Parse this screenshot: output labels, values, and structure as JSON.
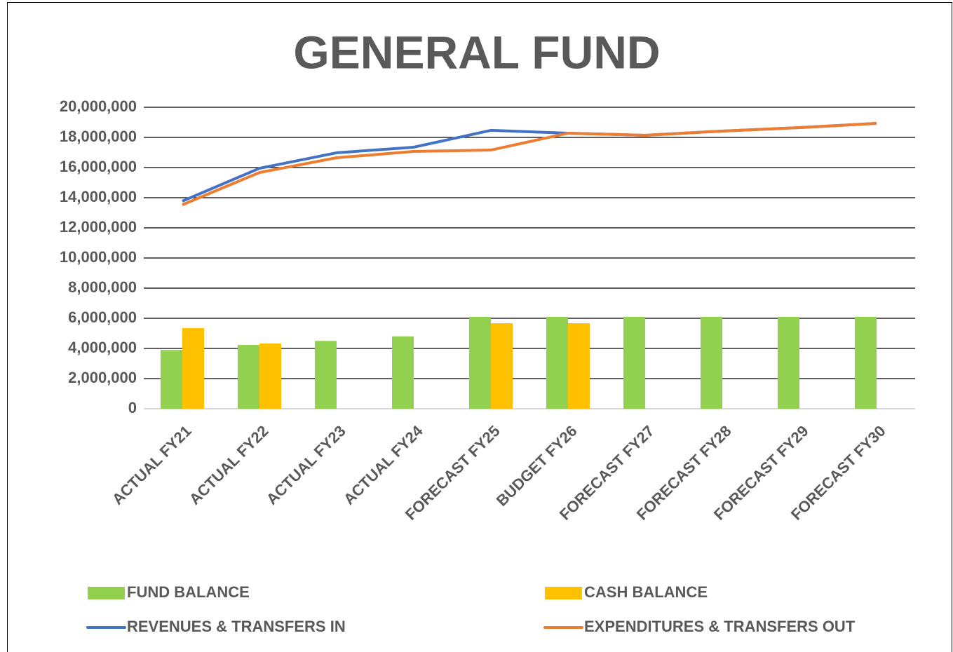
{
  "chart_data": {
    "type": "bar-line",
    "title": "GENERAL FUND",
    "categories": [
      "ACTUAL FY21",
      "ACTUAL FY22",
      "ACTUAL FY23",
      "ACTUAL FY24",
      "FORECAST FY25",
      "BUDGET FY26",
      "FORECAST FY27",
      "FORECAST FY28",
      "FORECAST FY29",
      "FORECAST FY30"
    ],
    "series": [
      {
        "name": "FUND BALANCE",
        "type": "bar",
        "color": "#92d050",
        "values": [
          3900000,
          4230000,
          4500000,
          4800000,
          6100000,
          6100000,
          6100000,
          6100000,
          6100000,
          6100000
        ]
      },
      {
        "name": "CASH BALANCE",
        "type": "bar",
        "color": "#ffc000",
        "values": [
          5350000,
          4330000,
          null,
          null,
          5670000,
          5670000,
          null,
          null,
          null,
          null
        ]
      },
      {
        "name": "REVENUES & TRANSFERS IN",
        "type": "line",
        "color": "#4472c4",
        "values": [
          13770000,
          15950000,
          16980000,
          17350000,
          18470000,
          18280000,
          18140000,
          18420000,
          18650000,
          18930000
        ]
      },
      {
        "name": "EXPENDITURES & TRANSFERS OUT",
        "type": "line",
        "color": "#ed7d31",
        "values": [
          13530000,
          15670000,
          16650000,
          17070000,
          17160000,
          18280000,
          18140000,
          18420000,
          18650000,
          18930000
        ]
      }
    ],
    "ylim": [
      0,
      20000000
    ],
    "yticks": [
      0,
      {
        "value": 2000000,
        "label": "2,000,000"
      },
      {
        "value": 4000000,
        "label": "4,000,000"
      },
      {
        "value": 6000000,
        "label": "6,000,000"
      },
      {
        "value": 8000000,
        "label": "8,000,000"
      },
      {
        "value": 10000000,
        "label": "10,000,000"
      },
      {
        "value": 12000000,
        "label": "12,000,000"
      },
      {
        "value": 14000000,
        "label": "14,000,000"
      },
      {
        "value": 16000000,
        "label": "16,000,000"
      },
      {
        "value": 18000000,
        "label": "18,000,000"
      },
      {
        "value": 20000000,
        "label": "20,000,000"
      }
    ],
    "grid": true,
    "legend": "bottom"
  }
}
